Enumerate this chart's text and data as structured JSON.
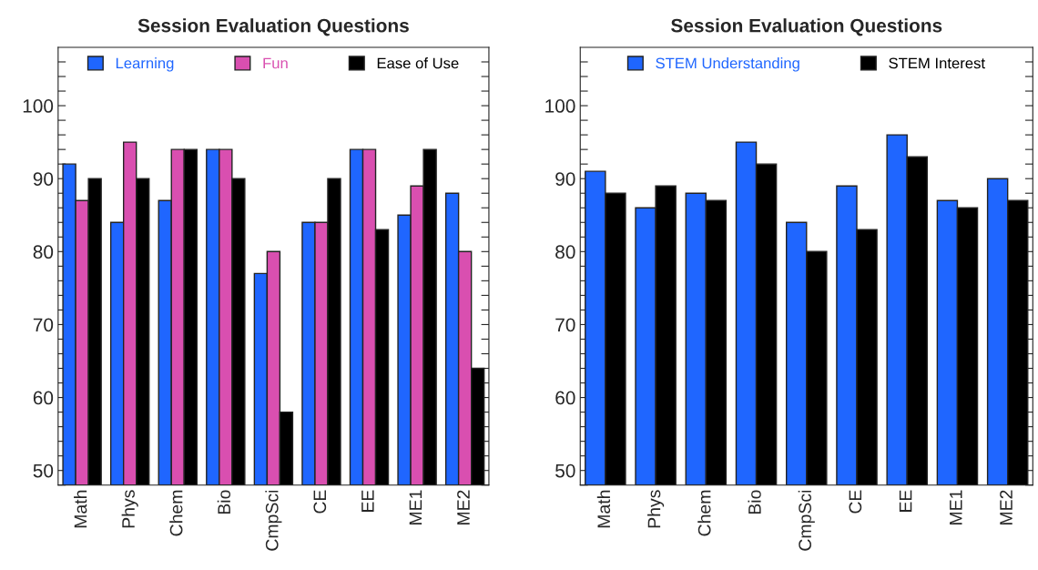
{
  "chart_data": [
    {
      "type": "bar",
      "title": "Session Evaluation Questions",
      "categories": [
        "Math",
        "Phys",
        "Chem",
        "Bio",
        "CmpSci",
        "CE",
        "EE",
        "ME1",
        "ME2"
      ],
      "series": [
        {
          "name": "Learning",
          "color": "#1f66ff",
          "values": [
            92,
            84,
            87,
            94,
            77,
            84,
            94,
            85,
            88
          ]
        },
        {
          "name": "Fun",
          "color": "#d94fb0",
          "values": [
            87,
            95,
            94,
            94,
            80,
            84,
            94,
            89,
            80
          ]
        },
        {
          "name": "Ease of Use",
          "color": "#000000",
          "values": [
            90,
            90,
            94,
            90,
            58,
            90,
            83,
            94,
            64
          ]
        }
      ],
      "ylim": [
        48,
        108
      ],
      "yticks": [
        {
          "value": 48,
          "label": null
        },
        50,
        {
          "value": 52,
          "label": null
        },
        {
          "value": 54,
          "label": null
        },
        {
          "value": 56,
          "label": null
        },
        {
          "value": 58,
          "label": null
        },
        60,
        {
          "value": 62,
          "label": null
        },
        {
          "value": 64,
          "label": null
        },
        {
          "value": 66,
          "label": null
        },
        {
          "value": 68,
          "label": null
        },
        70,
        {
          "value": 72,
          "label": null
        },
        {
          "value": 74,
          "label": null
        },
        {
          "value": 76,
          "label": null
        },
        {
          "value": 78,
          "label": null
        },
        80,
        {
          "value": 82,
          "label": null
        },
        {
          "value": 84,
          "label": null
        },
        {
          "value": 86,
          "label": null
        },
        {
          "value": 88,
          "label": null
        },
        90,
        {
          "value": 92,
          "label": null
        },
        {
          "value": 94,
          "label": null
        },
        {
          "value": 96,
          "label": null
        },
        {
          "value": 98,
          "label": null
        },
        100,
        {
          "value": 102,
          "label": null
        },
        {
          "value": 104,
          "label": null
        },
        {
          "value": 106,
          "label": null
        }
      ],
      "grid": false,
      "legend": "top"
    },
    {
      "type": "bar",
      "title": "Session Evaluation Questions",
      "categories": [
        "Math",
        "Phys",
        "Chem",
        "Bio",
        "CmpSci",
        "CE",
        "EE",
        "ME1",
        "ME2"
      ],
      "series": [
        {
          "name": "STEM Understanding",
          "color": "#1f66ff",
          "values": [
            91,
            86,
            88,
            95,
            84,
            89,
            96,
            87,
            90
          ]
        },
        {
          "name": "STEM Interest",
          "color": "#000000",
          "values": [
            88,
            89,
            87,
            92,
            80,
            83,
            93,
            86,
            87
          ]
        }
      ],
      "ylim": [
        48,
        108
      ],
      "yticks": [
        {
          "value": 48,
          "label": null
        },
        50,
        {
          "value": 52,
          "label": null
        },
        {
          "value": 54,
          "label": null
        },
        {
          "value": 56,
          "label": null
        },
        {
          "value": 58,
          "label": null
        },
        60,
        {
          "value": 62,
          "label": null
        },
        {
          "value": 64,
          "label": null
        },
        {
          "value": 66,
          "label": null
        },
        {
          "value": 68,
          "label": null
        },
        70,
        {
          "value": 72,
          "label": null
        },
        {
          "value": 74,
          "label": null
        },
        {
          "value": 76,
          "label": null
        },
        {
          "value": 78,
          "label": null
        },
        80,
        {
          "value": 82,
          "label": null
        },
        {
          "value": 84,
          "label": null
        },
        {
          "value": 86,
          "label": null
        },
        {
          "value": 88,
          "label": null
        },
        90,
        {
          "value": 92,
          "label": null
        },
        {
          "value": 94,
          "label": null
        },
        {
          "value": 96,
          "label": null
        },
        {
          "value": 98,
          "label": null
        },
        100,
        {
          "value": 102,
          "label": null
        },
        {
          "value": 104,
          "label": null
        },
        {
          "value": 106,
          "label": null
        }
      ],
      "grid": false,
      "legend": "top"
    }
  ]
}
